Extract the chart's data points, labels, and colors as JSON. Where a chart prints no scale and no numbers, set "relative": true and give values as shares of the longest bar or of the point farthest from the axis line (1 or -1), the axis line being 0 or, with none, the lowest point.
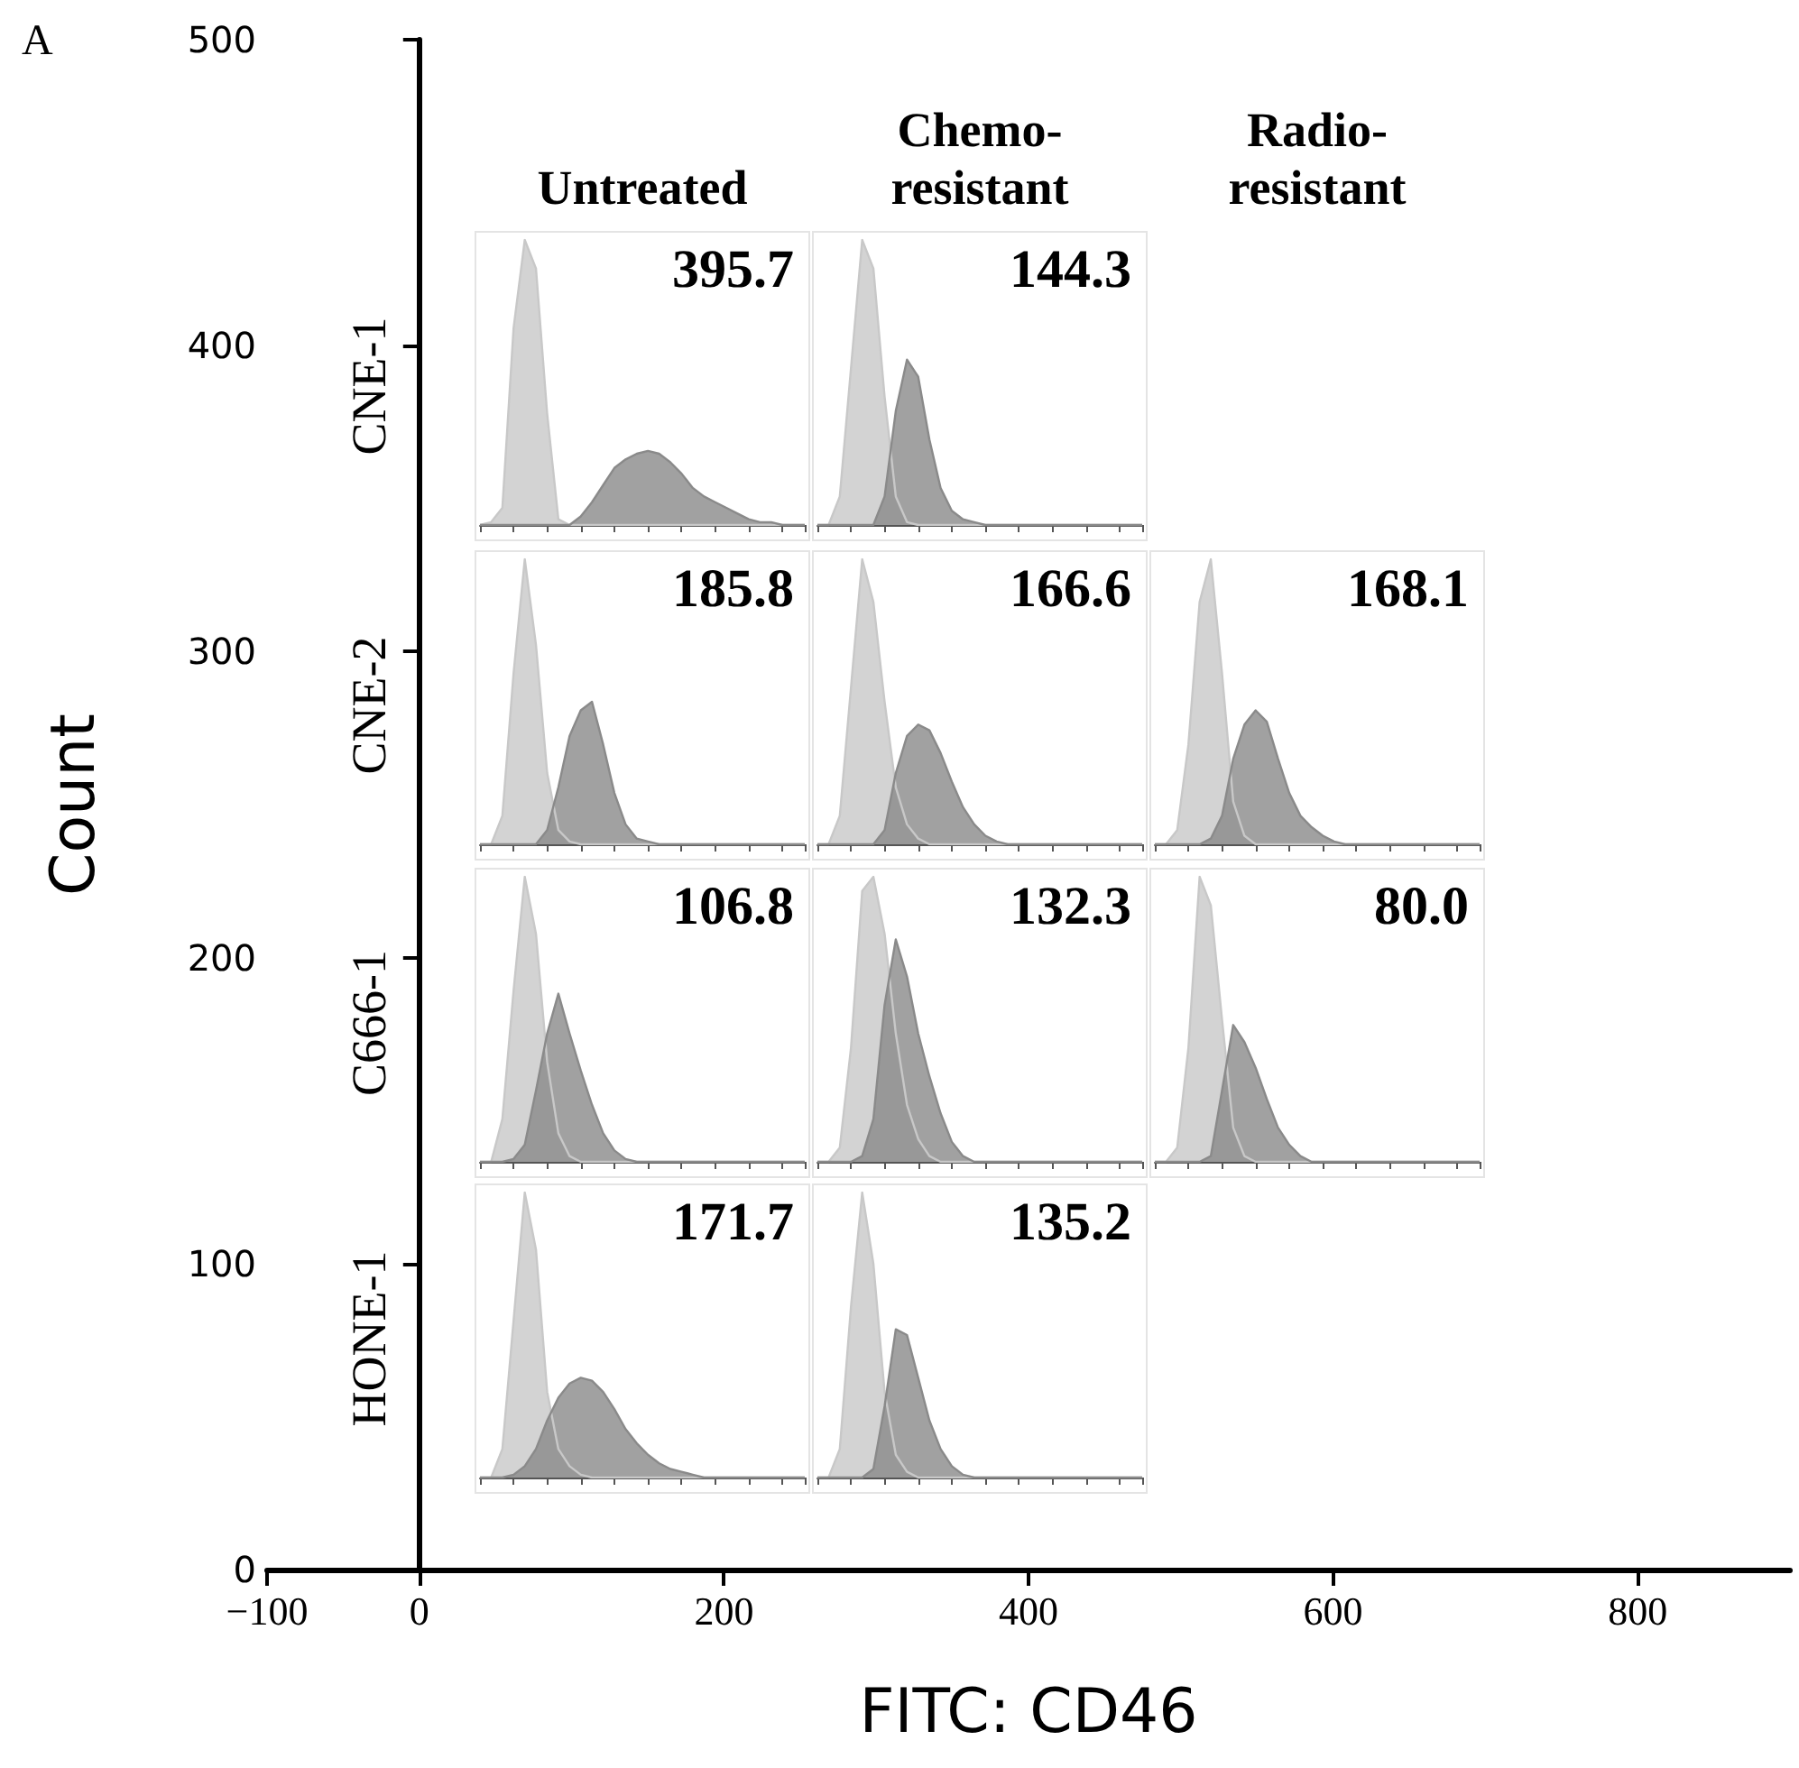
{
  "chart_data": [
    {
      "type": "scatter",
      "xlabel": "FITC: CD46",
      "ylabel": "Count",
      "annotations": [
        "A"
      ],
      "xlim": [
        -100,
        900
      ],
      "xticks": [
        {
          "value": -100,
          "label": "−100"
        },
        0,
        200,
        400,
        600,
        800
      ],
      "ylim": [
        0,
        500
      ],
      "yticks": [
        0,
        100,
        200,
        300,
        400,
        500
      ]
    },
    {
      "type": "area",
      "relative": true,
      "tick_labels": false,
      "title": "Untreated",
      "ylabel": "CNE-1",
      "annotations": [
        "395.7"
      ],
      "categories": [
        null,
        null,
        null,
        null,
        null,
        null,
        null,
        null,
        null,
        null,
        null,
        null,
        null,
        null,
        null,
        null,
        null,
        null,
        null,
        null,
        null,
        null,
        null,
        null,
        null,
        null,
        null,
        null,
        null,
        null
      ],
      "series": [
        {
          "color": "#c8c8c8",
          "values": [
            0,
            0.01,
            0.06,
            0.69,
            1,
            0.9,
            0.39,
            0.02,
            0,
            0,
            0,
            0,
            0,
            0,
            0,
            0,
            0,
            0,
            0,
            0,
            0,
            0,
            0,
            0,
            0,
            0,
            0,
            0,
            0,
            0
          ]
        },
        {
          "color": "#8a8a8a",
          "values": [
            0,
            0,
            0,
            0,
            0,
            0,
            0,
            0,
            0,
            0.03,
            0.08,
            0.14,
            0.2,
            0.23,
            0.25,
            0.26,
            0.25,
            0.22,
            0.18,
            0.13,
            0.1,
            0.08,
            0.06,
            0.04,
            0.02,
            0.01,
            0.01,
            0,
            0,
            0
          ]
        }
      ]
    },
    {
      "type": "area",
      "relative": true,
      "tick_labels": false,
      "title": "Chemo-\nresistant",
      "annotations": [
        "144.3"
      ],
      "categories": [
        null,
        null,
        null,
        null,
        null,
        null,
        null,
        null,
        null,
        null,
        null,
        null,
        null,
        null,
        null,
        null,
        null,
        null,
        null,
        null,
        null,
        null,
        null,
        null,
        null,
        null,
        null,
        null,
        null,
        null
      ],
      "series": [
        {
          "color": "#c8c8c8",
          "values": [
            0,
            0,
            0.1,
            0.55,
            1,
            0.9,
            0.45,
            0.1,
            0.01,
            0,
            0,
            0,
            0,
            0,
            0,
            0,
            0,
            0,
            0,
            0,
            0,
            0,
            0,
            0,
            0,
            0,
            0,
            0,
            0,
            0
          ]
        },
        {
          "color": "#8a8a8a",
          "values": [
            0,
            0,
            0,
            0,
            0,
            0,
            0.1,
            0.4,
            0.58,
            0.52,
            0.3,
            0.13,
            0.05,
            0.02,
            0.01,
            0,
            0,
            0,
            0,
            0,
            0,
            0,
            0,
            0,
            0,
            0,
            0,
            0,
            0,
            0
          ]
        }
      ]
    },
    {
      "type": "area",
      "relative": true,
      "tick_labels": false,
      "ylabel": "CNE-2",
      "annotations": [
        "185.8"
      ],
      "categories": [
        null,
        null,
        null,
        null,
        null,
        null,
        null,
        null,
        null,
        null,
        null,
        null,
        null,
        null,
        null,
        null,
        null,
        null,
        null,
        null,
        null,
        null,
        null,
        null,
        null,
        null,
        null,
        null,
        null,
        null
      ],
      "series": [
        {
          "color": "#c8c8c8",
          "values": [
            0,
            0,
            0.1,
            0.6,
            1,
            0.7,
            0.25,
            0.05,
            0.01,
            0,
            0,
            0,
            0,
            0,
            0,
            0,
            0,
            0,
            0,
            0,
            0,
            0,
            0,
            0,
            0,
            0,
            0,
            0,
            0,
            0
          ]
        },
        {
          "color": "#8a8a8a",
          "values": [
            0,
            0,
            0,
            0,
            0,
            0,
            0.05,
            0.2,
            0.38,
            0.47,
            0.5,
            0.35,
            0.18,
            0.07,
            0.02,
            0.01,
            0,
            0,
            0,
            0,
            0,
            0,
            0,
            0,
            0,
            0,
            0,
            0,
            0,
            0
          ]
        }
      ]
    },
    {
      "type": "area",
      "relative": true,
      "tick_labels": false,
      "annotations": [
        "166.6"
      ],
      "categories": [
        null,
        null,
        null,
        null,
        null,
        null,
        null,
        null,
        null,
        null,
        null,
        null,
        null,
        null,
        null,
        null,
        null,
        null,
        null,
        null,
        null,
        null,
        null,
        null,
        null,
        null,
        null,
        null,
        null,
        null
      ],
      "series": [
        {
          "color": "#c8c8c8",
          "values": [
            0,
            0,
            0.1,
            0.55,
            1,
            0.85,
            0.5,
            0.2,
            0.07,
            0.02,
            0,
            0,
            0,
            0,
            0,
            0,
            0,
            0,
            0,
            0,
            0,
            0,
            0,
            0,
            0,
            0,
            0,
            0,
            0,
            0
          ]
        },
        {
          "color": "#8a8a8a",
          "values": [
            0,
            0,
            0,
            0,
            0,
            0,
            0.05,
            0.25,
            0.38,
            0.42,
            0.4,
            0.32,
            0.22,
            0.13,
            0.07,
            0.03,
            0.01,
            0,
            0,
            0,
            0,
            0,
            0,
            0,
            0,
            0,
            0,
            0,
            0,
            0
          ]
        }
      ]
    },
    {
      "type": "area",
      "relative": true,
      "tick_labels": false,
      "title": "Radio-\nresistant",
      "annotations": [
        "168.1"
      ],
      "categories": [
        null,
        null,
        null,
        null,
        null,
        null,
        null,
        null,
        null,
        null,
        null,
        null,
        null,
        null,
        null,
        null,
        null,
        null,
        null,
        null,
        null,
        null,
        null,
        null,
        null,
        null,
        null,
        null,
        null,
        null
      ],
      "series": [
        {
          "color": "#c8c8c8",
          "values": [
            0,
            0,
            0.05,
            0.35,
            0.85,
            1,
            0.6,
            0.15,
            0.03,
            0,
            0,
            0,
            0,
            0,
            0,
            0,
            0,
            0,
            0,
            0,
            0,
            0,
            0,
            0,
            0,
            0,
            0,
            0,
            0,
            0
          ]
        },
        {
          "color": "#8a8a8a",
          "values": [
            0,
            0,
            0,
            0,
            0,
            0.02,
            0.1,
            0.3,
            0.42,
            0.47,
            0.43,
            0.3,
            0.18,
            0.1,
            0.06,
            0.03,
            0.01,
            0,
            0,
            0,
            0,
            0,
            0,
            0,
            0,
            0,
            0,
            0,
            0,
            0
          ]
        }
      ]
    },
    {
      "type": "area",
      "relative": true,
      "tick_labels": false,
      "ylabel": "C666-1",
      "annotations": [
        "106.8"
      ],
      "categories": [
        null,
        null,
        null,
        null,
        null,
        null,
        null,
        null,
        null,
        null,
        null,
        null,
        null,
        null,
        null,
        null,
        null,
        null,
        null,
        null,
        null,
        null,
        null,
        null,
        null,
        null,
        null,
        null,
        null,
        null
      ],
      "series": [
        {
          "color": "#c8c8c8",
          "values": [
            0,
            0,
            0.15,
            0.6,
            1,
            0.8,
            0.35,
            0.1,
            0.02,
            0,
            0,
            0,
            0,
            0,
            0,
            0,
            0,
            0,
            0,
            0,
            0,
            0,
            0,
            0,
            0,
            0,
            0,
            0,
            0,
            0
          ]
        },
        {
          "color": "#8a8a8a",
          "values": [
            0,
            0,
            0,
            0.01,
            0.06,
            0.25,
            0.45,
            0.59,
            0.45,
            0.32,
            0.2,
            0.1,
            0.04,
            0.01,
            0,
            0,
            0,
            0,
            0,
            0,
            0,
            0,
            0,
            0,
            0,
            0,
            0,
            0,
            0,
            0
          ]
        }
      ]
    },
    {
      "type": "area",
      "relative": true,
      "tick_labels": false,
      "annotations": [
        "132.3"
      ],
      "categories": [
        null,
        null,
        null,
        null,
        null,
        null,
        null,
        null,
        null,
        null,
        null,
        null,
        null,
        null,
        null,
        null,
        null,
        null,
        null,
        null,
        null,
        null,
        null,
        null,
        null,
        null,
        null,
        null,
        null,
        null
      ],
      "series": [
        {
          "color": "#c8c8c8",
          "values": [
            0,
            0,
            0.05,
            0.4,
            0.95,
            1,
            0.8,
            0.45,
            0.2,
            0.08,
            0.02,
            0,
            0,
            0,
            0,
            0,
            0,
            0,
            0,
            0,
            0,
            0,
            0,
            0,
            0,
            0,
            0,
            0,
            0,
            0
          ]
        },
        {
          "color": "#8a8a8a",
          "values": [
            0,
            0,
            0,
            0,
            0.02,
            0.15,
            0.55,
            0.78,
            0.65,
            0.45,
            0.3,
            0.17,
            0.07,
            0.02,
            0,
            0,
            0,
            0,
            0,
            0,
            0,
            0,
            0,
            0,
            0,
            0,
            0,
            0,
            0,
            0
          ]
        }
      ]
    },
    {
      "type": "area",
      "relative": true,
      "tick_labels": false,
      "annotations": [
        "80.0"
      ],
      "categories": [
        null,
        null,
        null,
        null,
        null,
        null,
        null,
        null,
        null,
        null,
        null,
        null,
        null,
        null,
        null,
        null,
        null,
        null,
        null,
        null,
        null,
        null,
        null,
        null,
        null,
        null,
        null,
        null,
        null,
        null
      ],
      "series": [
        {
          "color": "#c8c8c8",
          "values": [
            0,
            0,
            0.05,
            0.4,
            1,
            0.9,
            0.5,
            0.12,
            0.02,
            0,
            0,
            0,
            0,
            0,
            0,
            0,
            0,
            0,
            0,
            0,
            0,
            0,
            0,
            0,
            0,
            0,
            0,
            0,
            0,
            0
          ]
        },
        {
          "color": "#8a8a8a",
          "values": [
            0,
            0,
            0,
            0,
            0,
            0.02,
            0.25,
            0.48,
            0.42,
            0.33,
            0.22,
            0.12,
            0.06,
            0.02,
            0,
            0,
            0,
            0,
            0,
            0,
            0,
            0,
            0,
            0,
            0,
            0,
            0,
            0,
            0,
            0
          ]
        }
      ]
    },
    {
      "type": "area",
      "relative": true,
      "tick_labels": false,
      "ylabel": "HONE-1",
      "annotations": [
        "171.7"
      ],
      "categories": [
        null,
        null,
        null,
        null,
        null,
        null,
        null,
        null,
        null,
        null,
        null,
        null,
        null,
        null,
        null,
        null,
        null,
        null,
        null,
        null,
        null,
        null,
        null,
        null,
        null,
        null,
        null,
        null,
        null,
        null
      ],
      "series": [
        {
          "color": "#c8c8c8",
          "values": [
            0,
            0,
            0.1,
            0.55,
            1,
            0.8,
            0.3,
            0.1,
            0.04,
            0.01,
            0,
            0,
            0,
            0,
            0,
            0,
            0,
            0,
            0,
            0,
            0,
            0,
            0,
            0,
            0,
            0,
            0,
            0,
            0,
            0
          ]
        },
        {
          "color": "#8a8a8a",
          "values": [
            0,
            0,
            0,
            0.01,
            0.04,
            0.1,
            0.2,
            0.28,
            0.33,
            0.35,
            0.34,
            0.3,
            0.24,
            0.17,
            0.12,
            0.08,
            0.05,
            0.03,
            0.02,
            0.01,
            0,
            0,
            0,
            0,
            0,
            0,
            0,
            0,
            0,
            0
          ]
        }
      ]
    },
    {
      "type": "area",
      "relative": true,
      "tick_labels": false,
      "annotations": [
        "135.2"
      ],
      "categories": [
        null,
        null,
        null,
        null,
        null,
        null,
        null,
        null,
        null,
        null,
        null,
        null,
        null,
        null,
        null,
        null,
        null,
        null,
        null,
        null,
        null,
        null,
        null,
        null,
        null,
        null,
        null,
        null,
        null,
        null
      ],
      "series": [
        {
          "color": "#c8c8c8",
          "values": [
            0,
            0,
            0.1,
            0.6,
            1,
            0.75,
            0.3,
            0.08,
            0.02,
            0,
            0,
            0,
            0,
            0,
            0,
            0,
            0,
            0,
            0,
            0,
            0,
            0,
            0,
            0,
            0,
            0,
            0,
            0,
            0,
            0
          ]
        },
        {
          "color": "#8a8a8a",
          "values": [
            0,
            0,
            0,
            0,
            0,
            0.03,
            0.25,
            0.52,
            0.5,
            0.35,
            0.2,
            0.1,
            0.04,
            0.01,
            0,
            0,
            0,
            0,
            0,
            0,
            0,
            0,
            0,
            0,
            0,
            0,
            0,
            0,
            0,
            0
          ]
        }
      ]
    }
  ]
}
